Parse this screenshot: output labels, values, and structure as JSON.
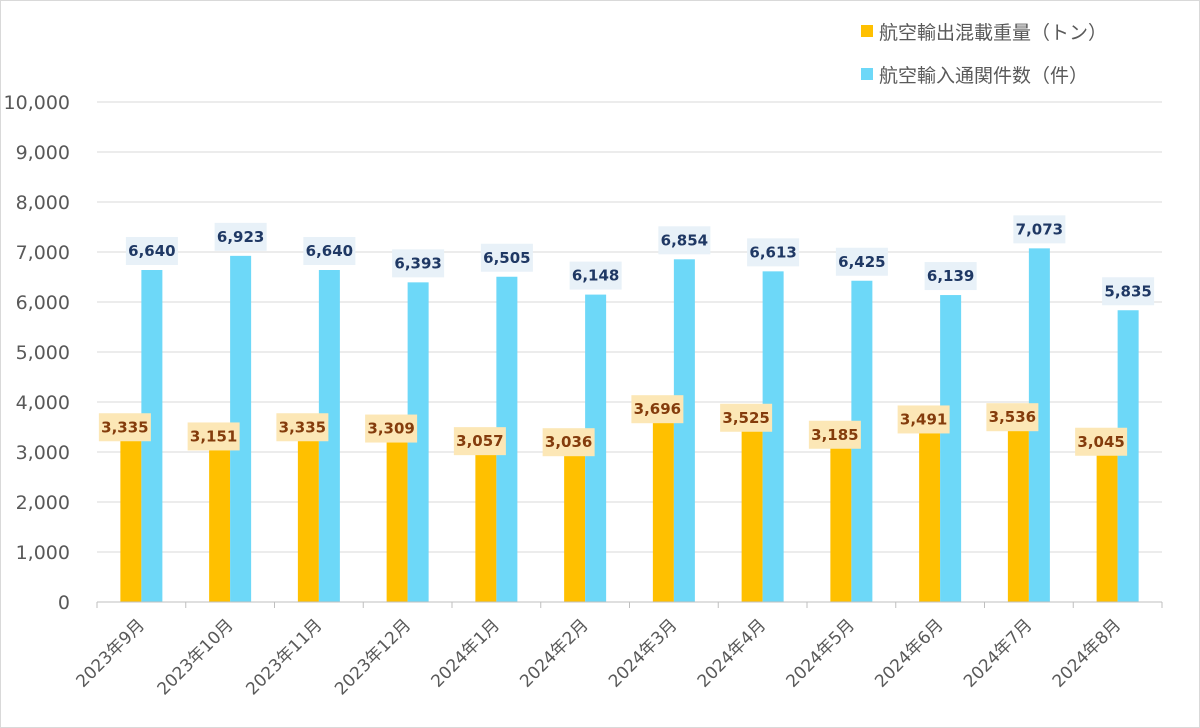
{
  "chart_data": {
    "type": "bar",
    "categories": [
      "2023年9月",
      "2023年10月",
      "2023年11月",
      "2023年12月",
      "2024年1月",
      "2024年2月",
      "2024年3月",
      "2024年4月",
      "2024年5月",
      "2024年6月",
      "2024年7月",
      "2024年8月"
    ],
    "series": [
      {
        "name": "航空輸出混載重量（トン）",
        "color": "#FFC000",
        "label_bg": "#FCE7B6",
        "label_color": "#843C0C",
        "values": [
          3335,
          3151,
          3335,
          3309,
          3057,
          3036,
          3696,
          3525,
          3185,
          3491,
          3536,
          3045
        ],
        "labels": [
          "3,335",
          "3,151",
          "3,335",
          "3,309",
          "3,057",
          "3,036",
          "3,696",
          "3,525",
          "3,185",
          "3,491",
          "3,536",
          "3,045"
        ]
      },
      {
        "name": "航空輸入通関件数（件）",
        "color": "#6DD8F8",
        "label_bg": "#E8F1F8",
        "label_color": "#1F3864",
        "values": [
          6640,
          6923,
          6640,
          6393,
          6505,
          6148,
          6854,
          6613,
          6425,
          6139,
          7073,
          5835
        ],
        "labels": [
          "6,640",
          "6,923",
          "6,640",
          "6,393",
          "6,505",
          "6,148",
          "6,854",
          "6,613",
          "6,425",
          "6,139",
          "7,073",
          "5,835"
        ]
      }
    ],
    "ylim": [
      0,
      10000
    ],
    "yticks": [
      0,
      1000,
      2000,
      3000,
      4000,
      5000,
      6000,
      7000,
      8000,
      9000,
      10000
    ],
    "ytick_labels": [
      "0",
      "1,000",
      "2,000",
      "3,000",
      "4,000",
      "5,000",
      "6,000",
      "7,000",
      "8,000",
      "9,000",
      "10,000"
    ],
    "grid": true,
    "legend_position": "top-right",
    "title": "",
    "xlabel": "",
    "ylabel": ""
  }
}
